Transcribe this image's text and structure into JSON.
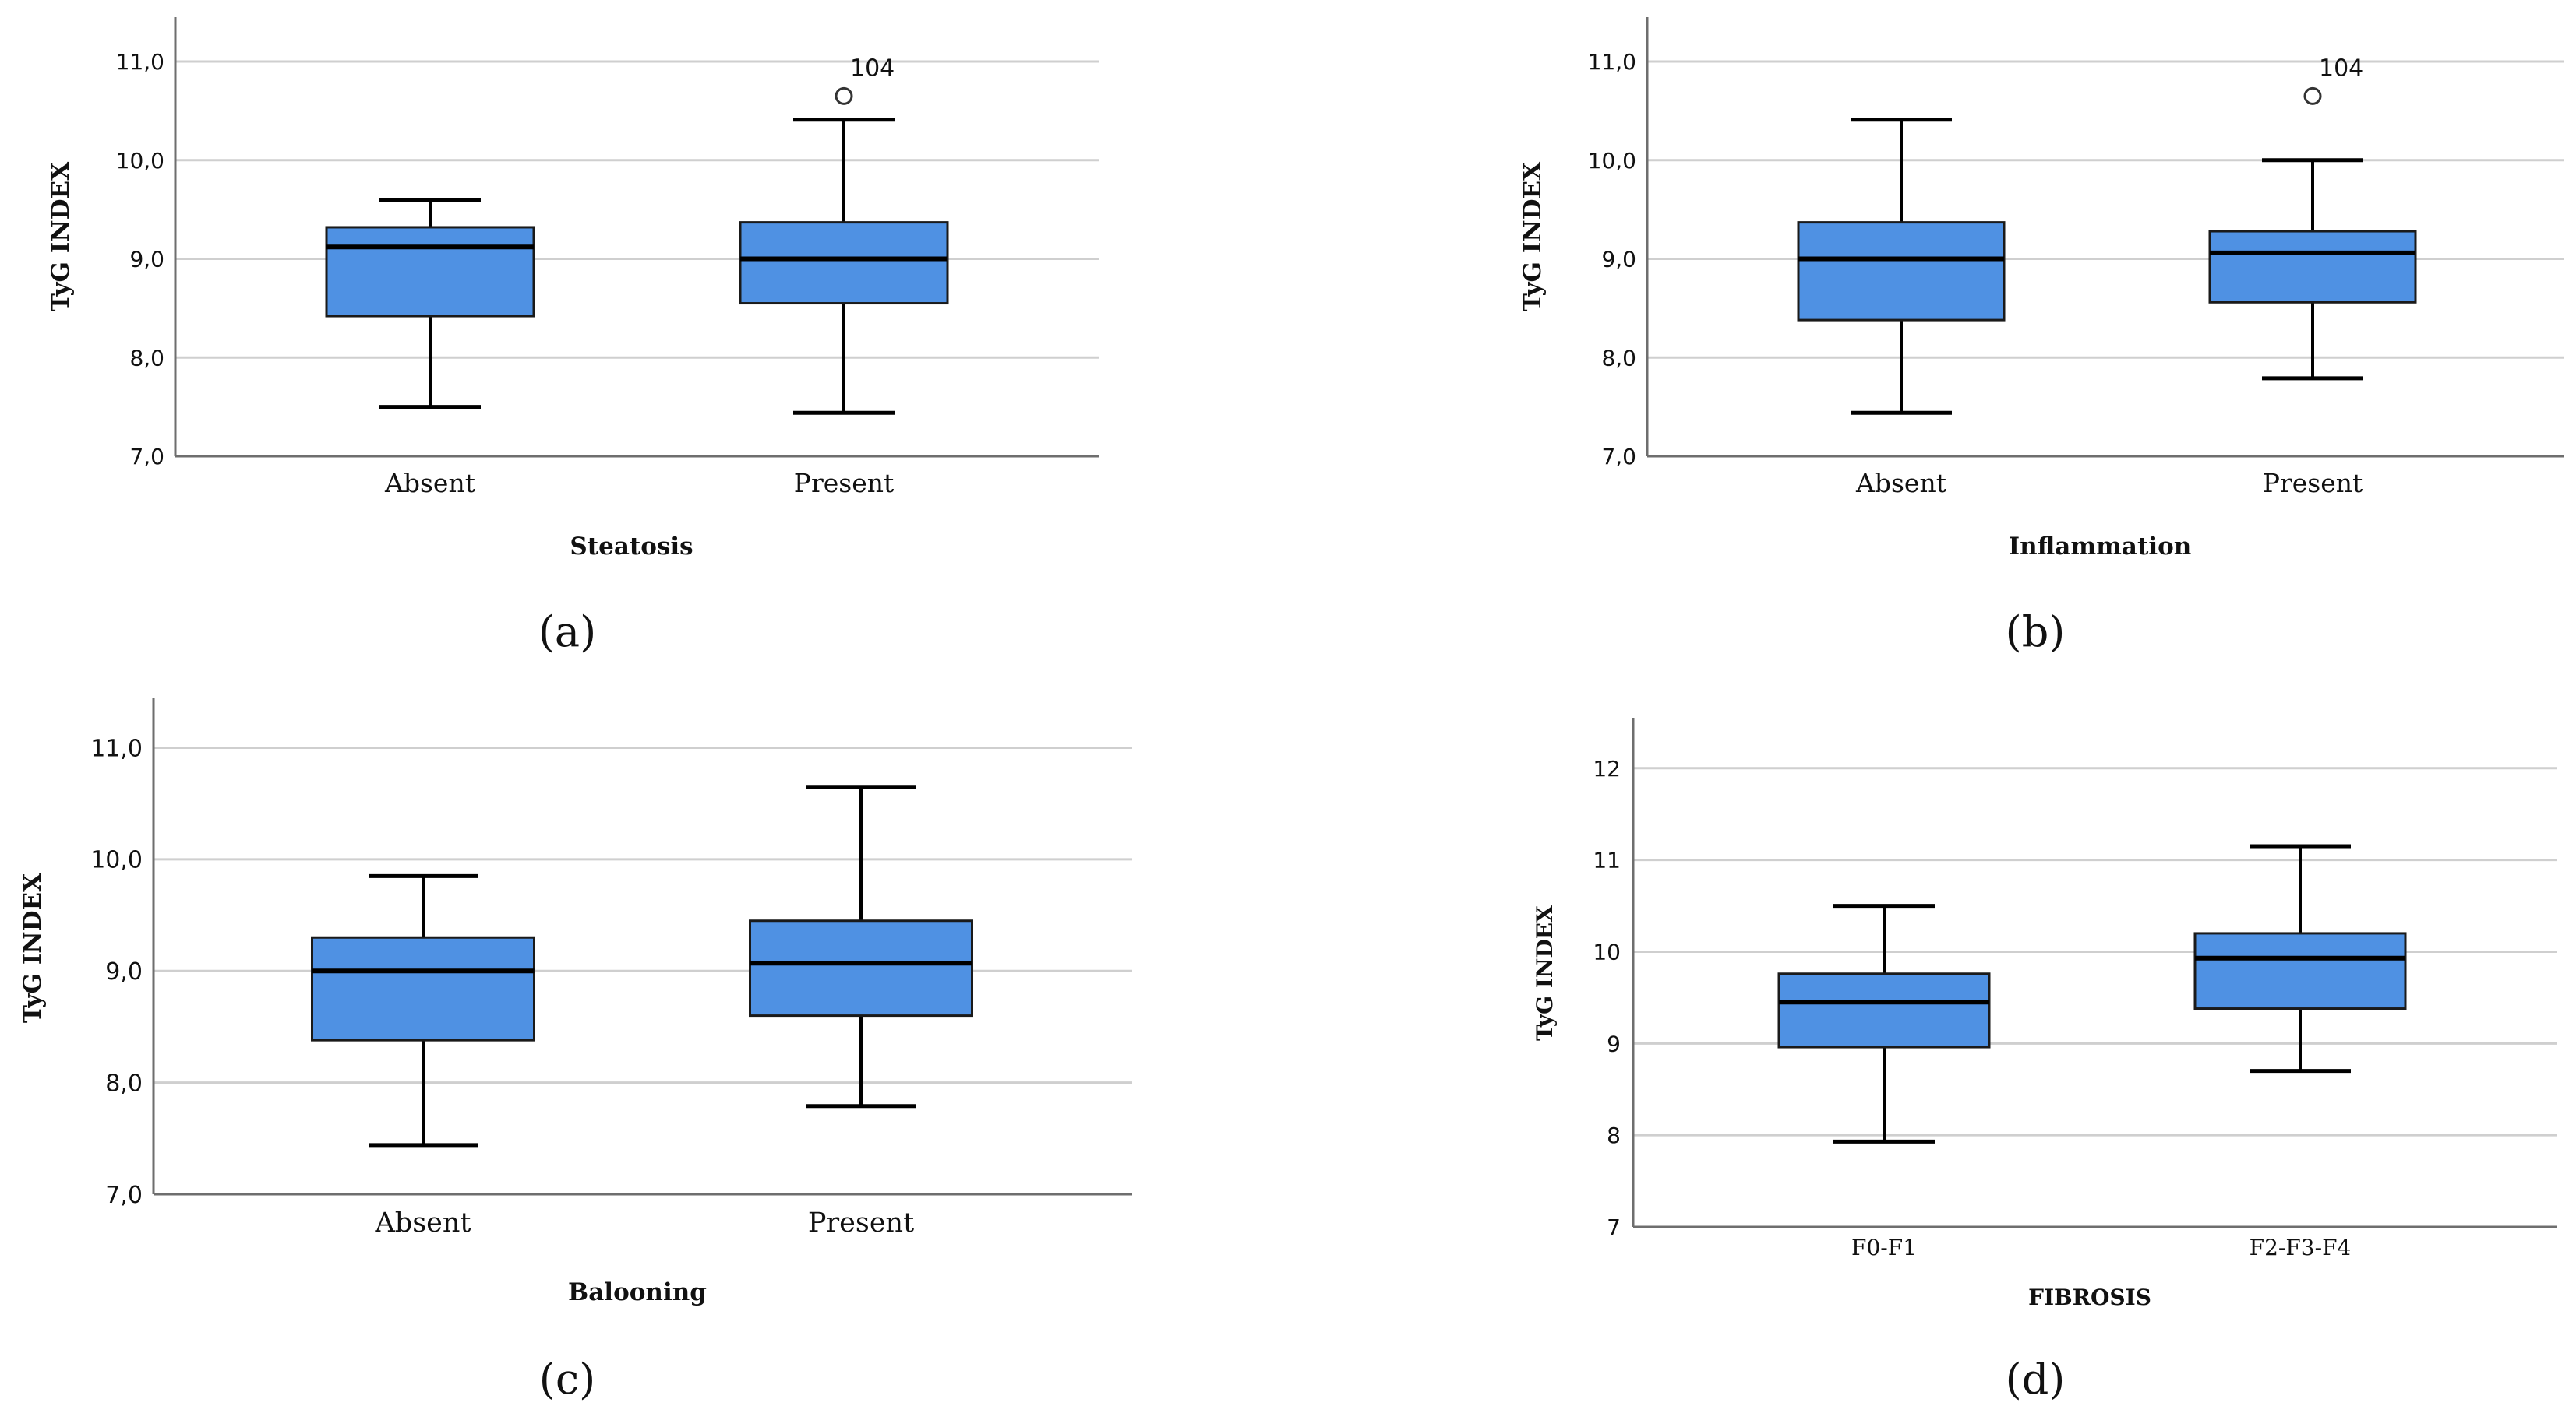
{
  "colors": {
    "box_fill": "#4f91e3",
    "grid": "#cfcfcf",
    "axis": "#6e6e6e",
    "stroke": "#000000",
    "text": "#111111"
  },
  "chart_data": [
    {
      "type": "boxplot",
      "panel_label": "(a)",
      "ylabel": "TyG INDEX",
      "xlabel": "Steatosis",
      "ylim": [
        7.0,
        11.45
      ],
      "yticks": [
        "7,0",
        "8,0",
        "9,0",
        "10,0",
        "11,0"
      ],
      "ytick_values": [
        7.0,
        8.0,
        9.0,
        10.0,
        11.0
      ],
      "categories": [
        "Absent",
        "Present"
      ],
      "boxes": [
        {
          "category": "Absent",
          "whisker_low": 7.5,
          "q1": 8.42,
          "median": 9.12,
          "q3": 9.32,
          "whisker_high": 9.6,
          "outliers": []
        },
        {
          "category": "Present",
          "whisker_low": 7.44,
          "q1": 8.55,
          "median": 9.0,
          "q3": 9.37,
          "whisker_high": 10.41,
          "outliers": [
            {
              "value": 10.65,
              "label": "104"
            }
          ]
        }
      ]
    },
    {
      "type": "boxplot",
      "panel_label": "(b)",
      "ylabel": "TyG INDEX",
      "xlabel": "Inflammation",
      "ylim": [
        7.0,
        11.45
      ],
      "yticks": [
        "7,0",
        "8,0",
        "9,0",
        "10,0",
        "11,0"
      ],
      "ytick_values": [
        7.0,
        8.0,
        9.0,
        10.0,
        11.0
      ],
      "categories": [
        "Absent",
        "Present"
      ],
      "boxes": [
        {
          "category": "Absent",
          "whisker_low": 7.44,
          "q1": 8.38,
          "median": 9.0,
          "q3": 9.37,
          "whisker_high": 10.41,
          "outliers": []
        },
        {
          "category": "Present",
          "whisker_low": 7.79,
          "q1": 8.56,
          "median": 9.06,
          "q3": 9.28,
          "whisker_high": 10.0,
          "outliers": [
            {
              "value": 10.65,
              "label": "104"
            }
          ]
        }
      ]
    },
    {
      "type": "boxplot",
      "panel_label": "(c)",
      "ylabel": "TyG INDEX",
      "xlabel": "Balooning",
      "ylim": [
        7.0,
        11.45
      ],
      "yticks": [
        "7,0",
        "8,0",
        "9,0",
        "10,0",
        "11,0"
      ],
      "ytick_values": [
        7.0,
        8.0,
        9.0,
        10.0,
        11.0
      ],
      "categories": [
        "Absent",
        "Present"
      ],
      "boxes": [
        {
          "category": "Absent",
          "whisker_low": 7.44,
          "q1": 8.38,
          "median": 9.0,
          "q3": 9.3,
          "whisker_high": 9.85,
          "outliers": []
        },
        {
          "category": "Present",
          "whisker_low": 7.79,
          "q1": 8.6,
          "median": 9.07,
          "q3": 9.45,
          "whisker_high": 10.65,
          "outliers": []
        }
      ]
    },
    {
      "type": "boxplot",
      "panel_label": "(d)",
      "ylabel": "TyG INDEX",
      "xlabel": "FIBROSIS",
      "ylim": [
        7.0,
        12.55
      ],
      "yticks": [
        "7",
        "8",
        "9",
        "10",
        "11",
        "12"
      ],
      "ytick_values": [
        7,
        8,
        9,
        10,
        11,
        12
      ],
      "categories": [
        "F0-F1",
        "F2-F3-F4"
      ],
      "boxes": [
        {
          "category": "F0-F1",
          "whisker_low": 7.93,
          "q1": 8.96,
          "median": 9.45,
          "q3": 9.76,
          "whisker_high": 10.5,
          "outliers": []
        },
        {
          "category": "F2-F3-F4",
          "whisker_low": 8.7,
          "q1": 9.38,
          "median": 9.93,
          "q3": 10.2,
          "whisker_high": 11.15,
          "outliers": []
        }
      ]
    }
  ]
}
